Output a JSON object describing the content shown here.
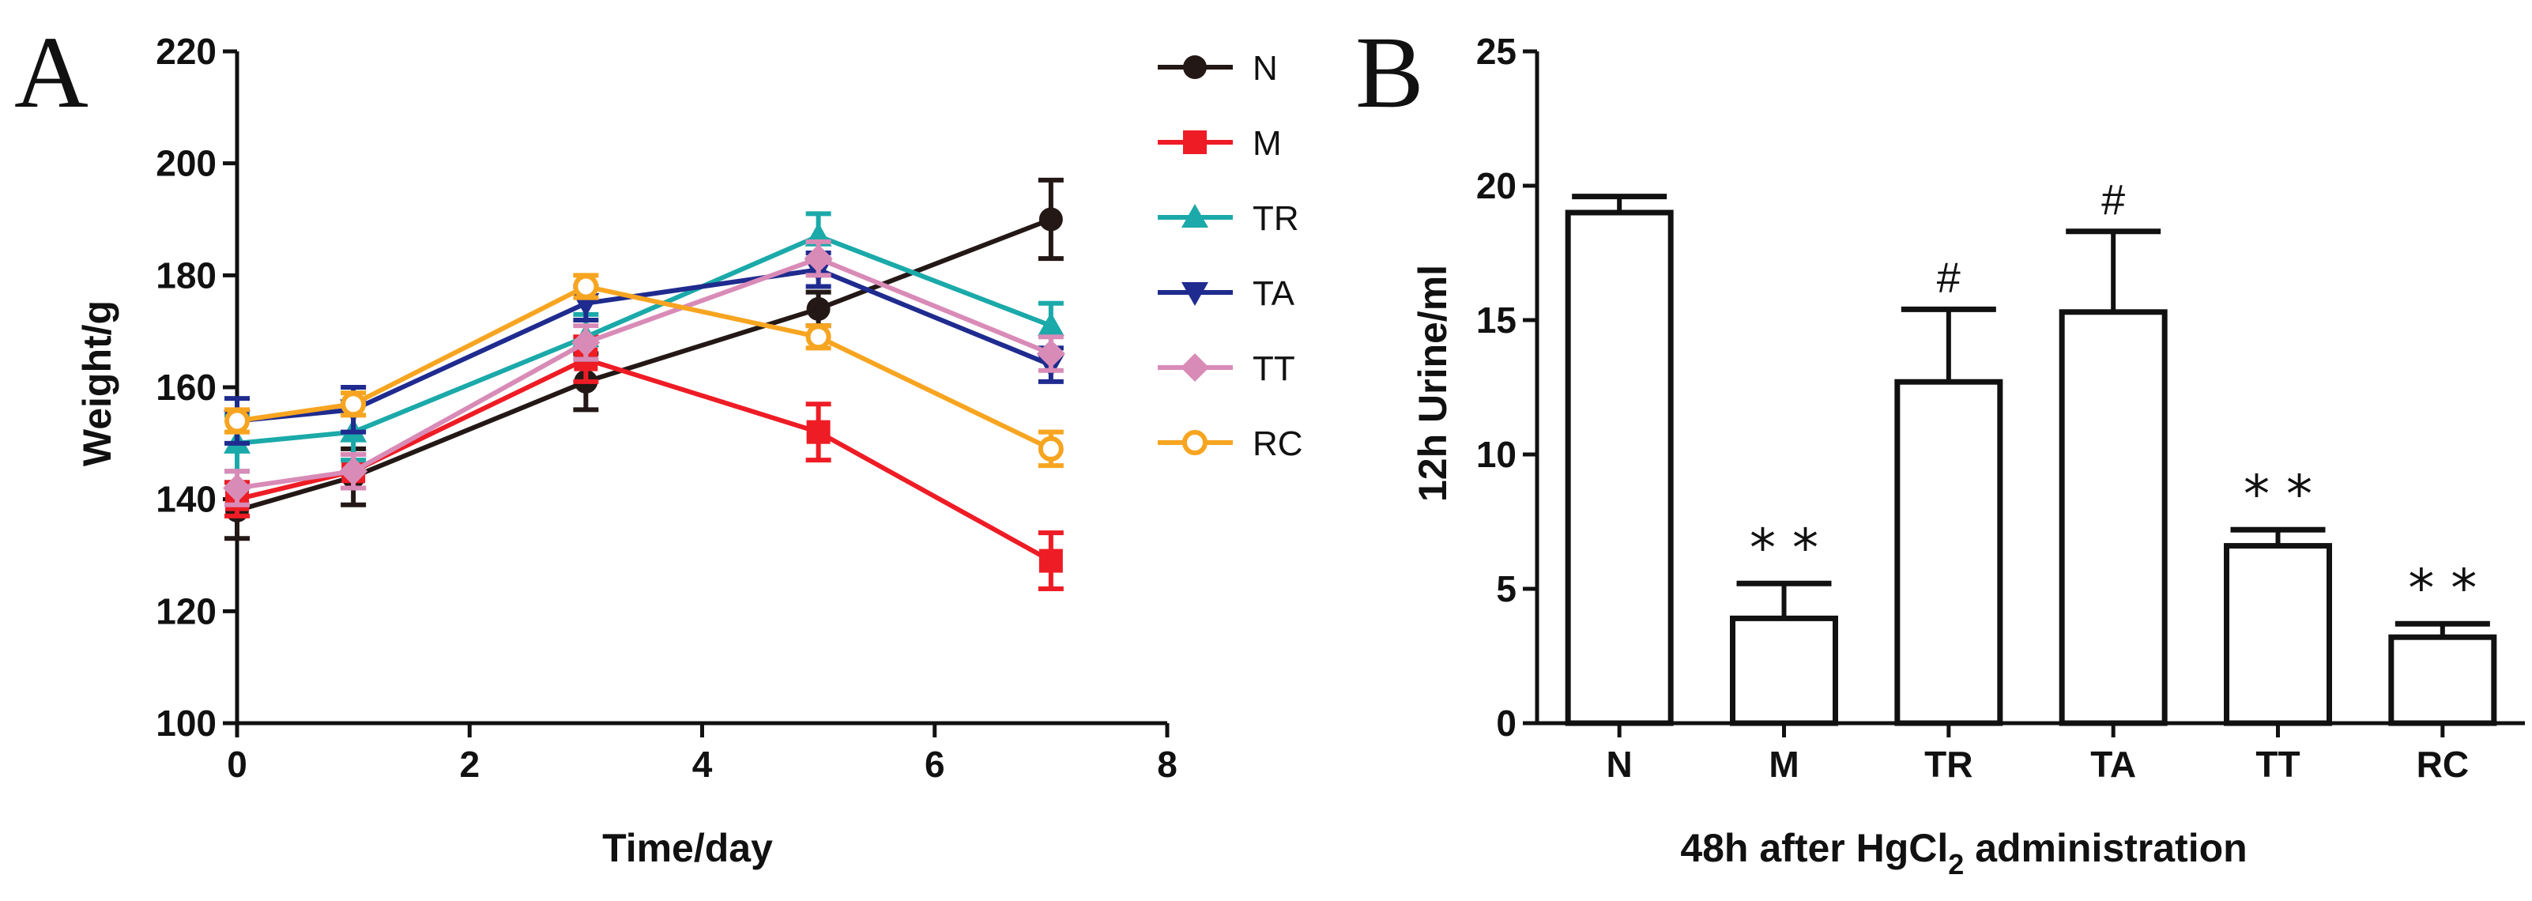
{
  "panels": {
    "a": "A",
    "b": "B"
  },
  "chart_data": [
    {
      "type": "line",
      "xlabel": "Time/day",
      "ylabel": "Weight/g",
      "xlim": [
        0,
        8
      ],
      "ylim": [
        100,
        220
      ],
      "xticks": [
        0,
        2,
        4,
        6,
        8
      ],
      "yticks": [
        100,
        120,
        140,
        160,
        180,
        200,
        220
      ],
      "x": [
        0,
        1,
        3,
        5,
        7
      ],
      "legend_position": "top-right",
      "series": [
        {
          "name": "N",
          "color": "#231815",
          "marker": "circle",
          "values": [
            138,
            144,
            161,
            174,
            190
          ],
          "errors": [
            5,
            5,
            5,
            3,
            7
          ]
        },
        {
          "name": "M",
          "color": "#ee1c25",
          "marker": "square",
          "values": [
            140,
            145,
            165,
            152,
            129
          ],
          "errors": [
            3,
            3,
            4,
            5,
            5
          ]
        },
        {
          "name": "TR",
          "color": "#1ba9a9",
          "marker": "triangle-up",
          "values": [
            150,
            152,
            169,
            187,
            171
          ],
          "errors": [
            5,
            5,
            4,
            4,
            4
          ]
        },
        {
          "name": "TA",
          "color": "#1f2b8e",
          "marker": "triangle-down",
          "values": [
            154,
            156,
            175,
            181,
            164
          ],
          "errors": [
            4,
            4,
            3,
            3,
            3
          ]
        },
        {
          "name": "TT",
          "color": "#d98bb7",
          "marker": "diamond",
          "values": [
            142,
            145,
            168,
            183,
            166
          ],
          "errors": [
            3,
            3,
            3,
            3,
            3
          ]
        },
        {
          "name": "RC",
          "color": "#f7a521",
          "marker": "circle-open",
          "values": [
            154,
            157,
            178,
            169,
            149
          ],
          "errors": [
            2,
            2,
            2,
            2,
            3
          ]
        }
      ]
    },
    {
      "type": "bar",
      "xlabel_prefix": "48h after HgCl",
      "xlabel_sub": "2",
      "xlabel_suffix": " administration",
      "ylabel": "12h Urine/ml",
      "ylim": [
        0,
        25
      ],
      "yticks": [
        0,
        5,
        10,
        15,
        20,
        25
      ],
      "categories": [
        "N",
        "M",
        "TR",
        "TA",
        "TT",
        "RC"
      ],
      "values": [
        19.0,
        3.9,
        12.7,
        15.3,
        6.6,
        3.2
      ],
      "errors": [
        0.6,
        1.3,
        2.7,
        3.0,
        0.6,
        0.5
      ],
      "annotations": [
        "",
        "* *",
        "#",
        "#",
        "* *",
        "* *"
      ]
    }
  ]
}
